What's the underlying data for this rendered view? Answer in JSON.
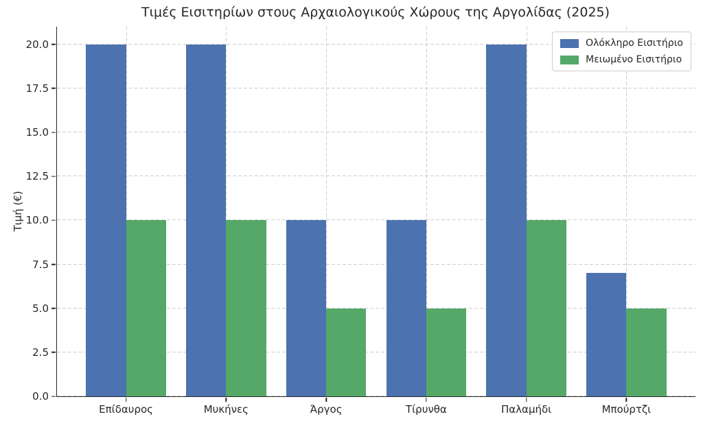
{
  "chart_data": {
    "type": "bar",
    "title": "Τιμές Εισιτηρίων στους Αρχαιολογικούς Χώρους της Αργολίδας (2025)",
    "xlabel": "",
    "ylabel": "Τιμή (€)",
    "categories": [
      "Επίδαυρος",
      "Μυκήνες",
      "Άργος",
      "Τίρυνθα",
      "Παλαμήδι",
      "Μπούρτζι"
    ],
    "series": [
      {
        "name": "Ολόκληρο Εισιτήριο",
        "color": "#4C72B0",
        "values": [
          20,
          20,
          10,
          10,
          20,
          7
        ]
      },
      {
        "name": "Μειωμένο Εισιτήριο",
        "color": "#55A868",
        "values": [
          10,
          10,
          5,
          5,
          10,
          5
        ]
      }
    ],
    "ylim": [
      0,
      21
    ],
    "yticks": [
      0.0,
      2.5,
      5.0,
      7.5,
      10.0,
      12.5,
      15.0,
      17.5,
      20.0
    ],
    "ytick_decimals": 1,
    "grid": true,
    "grid_style": "dashed",
    "grid_color": "#cccccc",
    "spine_color": "#262626",
    "text_color": "#262626",
    "background_color": "#ffffff",
    "legend_position": "upper right"
  }
}
